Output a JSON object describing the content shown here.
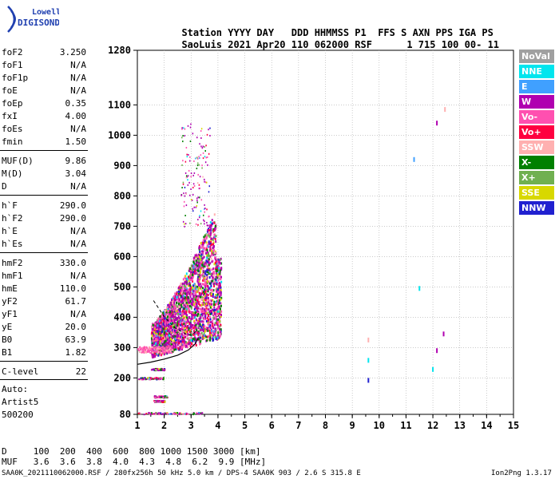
{
  "brand": {
    "line1": "Lowell",
    "line2": "DIGISONDE"
  },
  "header": {
    "row1": [
      "Station",
      "YYYY",
      "DAY",
      "DDD",
      "HHMMSS",
      "P1",
      "FFS",
      "S",
      "AXN",
      "PPS",
      "IGA",
      "PS"
    ],
    "row2": [
      "SaoLuis",
      "2021",
      "Apr20",
      "110",
      "062000",
      "RSF",
      "1",
      "715",
      "100",
      "00-",
      "11"
    ]
  },
  "params": [
    {
      "k": "foF2",
      "v": "3.250"
    },
    {
      "k": "foF1",
      "v": "N/A"
    },
    {
      "k": "foF1p",
      "v": "N/A"
    },
    {
      "k": "foE",
      "v": "N/A"
    },
    {
      "k": "foEp",
      "v": "0.35"
    },
    {
      "k": "fxI",
      "v": "4.00"
    },
    {
      "k": "foEs",
      "v": "N/A"
    },
    {
      "k": "fmin",
      "v": "1.50"
    },
    {
      "k": "MUF(D)",
      "v": "9.86"
    },
    {
      "k": "M(D)",
      "v": "3.04"
    },
    {
      "k": "D",
      "v": "N/A"
    },
    {
      "k": "h`F",
      "v": "290.0"
    },
    {
      "k": "h`F2",
      "v": "290.0"
    },
    {
      "k": "h`E",
      "v": "N/A"
    },
    {
      "k": "h`Es",
      "v": "N/A"
    },
    {
      "k": "hmF2",
      "v": "330.0"
    },
    {
      "k": "hmF1",
      "v": "N/A"
    },
    {
      "k": "hmE",
      "v": "110.0"
    },
    {
      "k": "yF2",
      "v": "61.7"
    },
    {
      "k": "yF1",
      "v": "N/A"
    },
    {
      "k": "yE",
      "v": "20.0"
    },
    {
      "k": "B0",
      "v": "63.9"
    },
    {
      "k": "B1",
      "v": "1.82"
    },
    {
      "k": "C-level",
      "v": "22"
    }
  ],
  "auto": {
    "l1": "Auto:",
    "l2": "Artist5",
    "l3": "500200"
  },
  "legend": [
    {
      "label": "NoVal",
      "color": "#a0a0a0"
    },
    {
      "label": "NNE",
      "color": "#00e5ee"
    },
    {
      "label": "E",
      "color": "#40a0ff"
    },
    {
      "label": "W",
      "color": "#b000b0"
    },
    {
      "label": "Vo-",
      "color": "#ff50b0"
    },
    {
      "label": "Vo+",
      "color": "#ff0040"
    },
    {
      "label": "SSW",
      "color": "#ffb0b0"
    },
    {
      "label": "X-",
      "color": "#008000"
    },
    {
      "label": "X+",
      "color": "#70b050"
    },
    {
      "label": "SSE",
      "color": "#d8d800"
    },
    {
      "label": "NNW",
      "color": "#2020d0"
    }
  ],
  "footer": {
    "d_row": "D     100  200  400  600  800 1000 1500 3000 [km]",
    "muf_row": "MUF   3.6  3.6  3.8  4.0  4.3  4.8  6.2  9.9 [MHz]",
    "file": "SAA0K_2021110062000.RSF / 280fx256h 50 kHz 5.0 km / DPS-4 SAA0K 903 / 2.6 S 315.8 E",
    "version": "Ion2Png 1.3.17"
  },
  "chart_data": {
    "type": "scatter",
    "xlim": [
      1,
      15
    ],
    "ylim": [
      80,
      1280
    ],
    "x_ticks": [
      1,
      2,
      3,
      4,
      5,
      6,
      7,
      8,
      9,
      10,
      11,
      12,
      13,
      14,
      15
    ],
    "y_ticks": [
      80,
      200,
      300,
      400,
      500,
      600,
      700,
      800,
      900,
      1000,
      1100,
      1280
    ],
    "grid": true,
    "legend_placement": "right",
    "isolated_points": [
      {
        "x": 12.15,
        "y": 1040,
        "color": "#b000b0"
      },
      {
        "x": 12.45,
        "y": 1085,
        "color": "#ffb0b0"
      },
      {
        "x": 11.3,
        "y": 920,
        "color": "#40a0ff"
      },
      {
        "x": 11.5,
        "y": 495,
        "color": "#00e5ee"
      },
      {
        "x": 12.4,
        "y": 345,
        "color": "#b000b0"
      },
      {
        "x": 12.15,
        "y": 290,
        "color": "#b000b0"
      },
      {
        "x": 12.0,
        "y": 228,
        "color": "#00e5ee"
      },
      {
        "x": 9.6,
        "y": 325,
        "color": "#ffb0b0"
      },
      {
        "x": 9.6,
        "y": 258,
        "color": "#00e5ee"
      },
      {
        "x": 9.6,
        "y": 192,
        "color": "#2020d0"
      }
    ],
    "profile_curve": [
      {
        "x": 1.0,
        "y": 245
      },
      {
        "x": 1.5,
        "y": 252
      },
      {
        "x": 2.0,
        "y": 262
      },
      {
        "x": 2.5,
        "y": 275
      },
      {
        "x": 2.9,
        "y": 292
      },
      {
        "x": 3.15,
        "y": 312
      },
      {
        "x": 3.25,
        "y": 330
      }
    ],
    "trace_curve": [
      {
        "x": 1.6,
        "y": 455
      },
      {
        "x": 2.0,
        "y": 402
      },
      {
        "x": 2.4,
        "y": 365
      },
      {
        "x": 2.8,
        "y": 345
      },
      {
        "x": 3.0,
        "y": 340
      },
      {
        "x": 3.2,
        "y": 355
      }
    ]
  }
}
